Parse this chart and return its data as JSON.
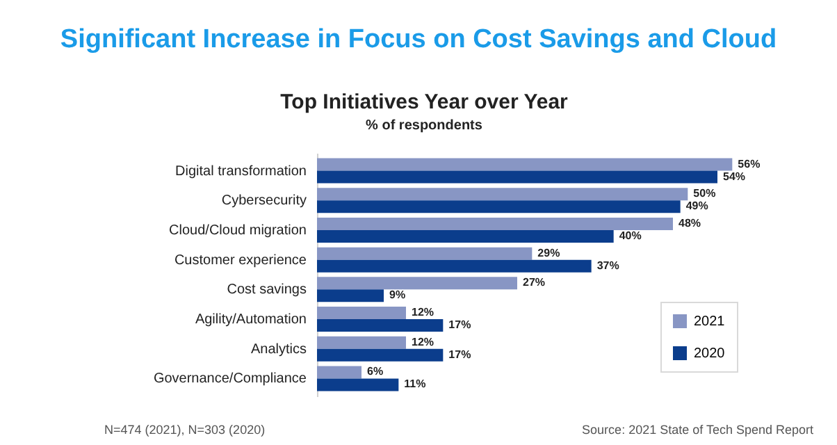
{
  "chart_data": {
    "type": "bar",
    "orientation": "horizontal",
    "title": "Significant Increase in Focus on Cost Savings and Cloud",
    "subtitle": "Top Initiatives Year over Year",
    "annotations": [
      "% of respondents",
      "N=474 (2021), N=303 (2020)",
      "Source: 2021 State of Tech Spend Report"
    ],
    "categories": [
      "Digital transformation",
      "Cybersecurity",
      "Cloud/Cloud migration",
      "Customer experience",
      "Cost savings",
      "Agility/Automation",
      "Analytics",
      "Governance/Compliance"
    ],
    "series": [
      {
        "name": "2021",
        "color": "#8896c4",
        "values": [
          56,
          50,
          48,
          29,
          27,
          12,
          12,
          6
        ],
        "value_labels": [
          "56%",
          "50%",
          "48%",
          "29%",
          "27%",
          "12%",
          "12%",
          "6%"
        ]
      },
      {
        "name": "2020",
        "color": "#0b3d8c",
        "values": [
          54,
          49,
          40,
          37,
          9,
          17,
          17,
          11
        ],
        "value_labels": [
          "54%",
          "49%",
          "40%",
          "37%",
          "9%",
          "17%",
          "17%",
          "11%"
        ]
      }
    ],
    "legend": "bottom right",
    "grid": false
  }
}
